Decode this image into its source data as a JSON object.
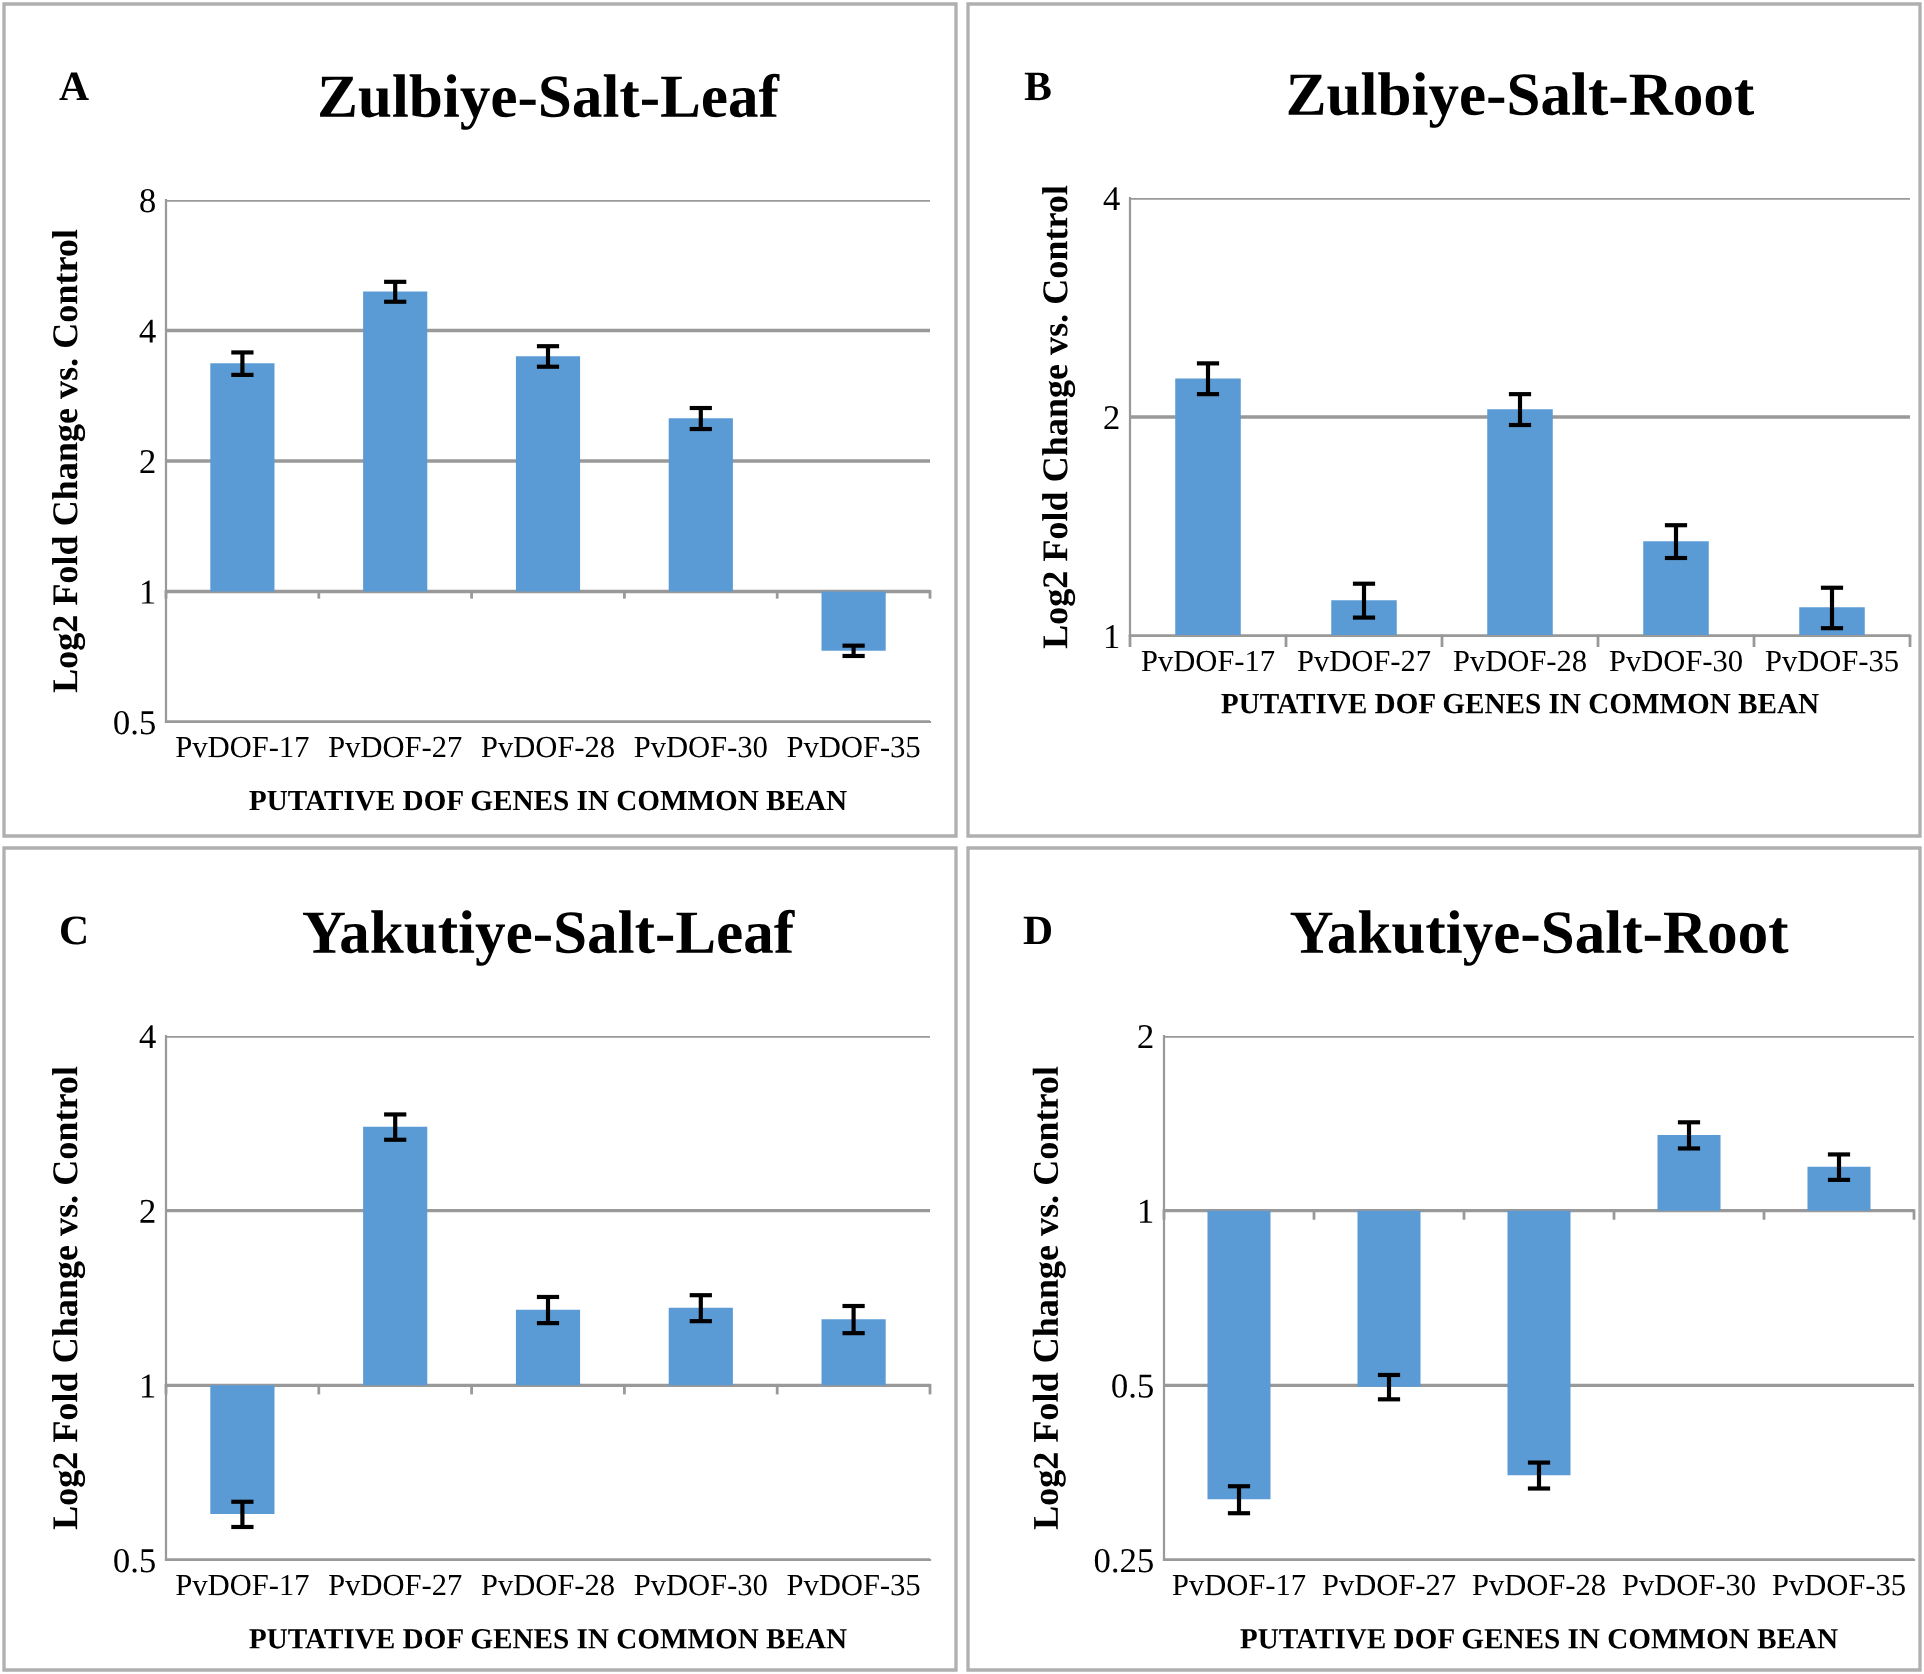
{
  "chart_data": [
    {
      "type": "bar",
      "title": "Zulbiye-Salt-Leaf",
      "annotations": [
        "A"
      ],
      "xlabel": "PUTATIVE DOF GENES IN COMMON BEAN",
      "ylabel": "Log2 Fold Change vs. Control",
      "log": "y",
      "grid": "y",
      "categories": [
        "PvDOF-17",
        "PvDOF-27",
        "PvDOF-28",
        "PvDOF-30",
        "PvDOF-35"
      ],
      "base": [
        1,
        1,
        1,
        1,
        1
      ],
      "values": [
        2.36,
        3.92,
        2.49,
        1.51,
        -0.27
      ],
      "errors": [
        0.2,
        0.26,
        0.19,
        0.14,
        0.02
      ],
      "color": "#5b9bd5",
      "ylim": [
        0.5,
        8
      ],
      "yticks": [
        0.5,
        1,
        2,
        4,
        8
      ]
    },
    {
      "type": "bar",
      "title": "Zulbiye-Salt-Root",
      "annotations": [
        "B"
      ],
      "xlabel": "PUTATIVE DOF GENES IN COMMON BEAN",
      "ylabel": "Log2 Fold Change vs. Control",
      "log": "y",
      "grid": "y",
      "categories": [
        "PvDOF-17",
        "PvDOF-27",
        "PvDOF-28",
        "PvDOF-30",
        "PvDOF-35"
      ],
      "base": [
        1,
        1,
        1,
        1,
        1
      ],
      "values": [
        1.26,
        0.12,
        1.05,
        0.35,
        0.095
      ],
      "errors": [
        0.11,
        0.06,
        0.1,
        0.07,
        0.07
      ],
      "color": "#5b9bd5",
      "ylim": [
        1,
        4
      ],
      "yticks": [
        1,
        2,
        4
      ]
    },
    {
      "type": "bar",
      "title": "Yakutiye-Salt-Leaf",
      "annotations": [
        "C"
      ],
      "xlabel": "PUTATIVE DOF GENES IN COMMON BEAN",
      "ylabel": "Log2 Fold Change vs. Control",
      "log": "y",
      "grid": "y",
      "categories": [
        "PvDOF-17",
        "PvDOF-27",
        "PvDOF-28",
        "PvDOF-30",
        "PvDOF-35"
      ],
      "base": [
        1,
        1,
        1,
        1,
        1
      ],
      "values": [
        -0.4,
        1.79,
        0.35,
        0.36,
        0.3
      ],
      "errors": [
        0.03,
        0.14,
        0.07,
        0.07,
        0.07
      ],
      "color": "#5b9bd5",
      "ylim": [
        0.5,
        4
      ],
      "yticks": [
        0.5,
        1,
        2,
        4
      ]
    },
    {
      "type": "bar",
      "title": "Yakutiye-Salt-Root",
      "annotations": [
        "D"
      ],
      "xlabel": "PUTATIVE DOF GENES IN COMMON BEAN",
      "ylabel": "Log2 Fold Change vs. Control",
      "log": "y",
      "grid": "y",
      "categories": [
        "PvDOF-17",
        "PvDOF-27",
        "PvDOF-28",
        "PvDOF-30",
        "PvDOF-35"
      ],
      "base": [
        1,
        1,
        1,
        1,
        1
      ],
      "values": [
        -0.682,
        -0.503,
        -0.65,
        0.35,
        0.19
      ],
      "errors": [
        0.017,
        0.024,
        0.018,
        0.07,
        0.06
      ],
      "color": "#5b9bd5",
      "ylim": [
        0.25,
        2
      ],
      "yticks": [
        0.25,
        0.5,
        1,
        2
      ]
    }
  ]
}
